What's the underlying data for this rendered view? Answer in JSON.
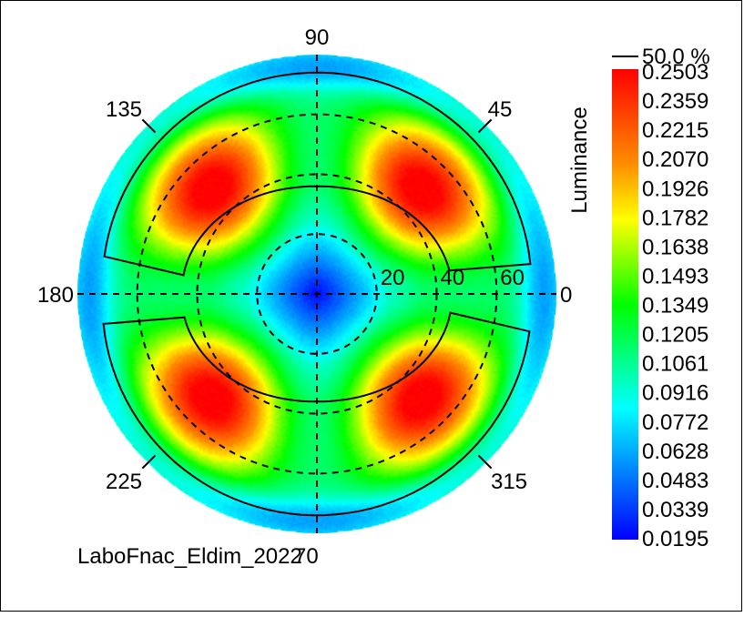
{
  "chart_data": {
    "type": "heatmap",
    "subtype": "polar-conoscope",
    "angle_labels": [
      "0",
      "45",
      "90",
      "135",
      "180",
      "225",
      "270",
      "315"
    ],
    "radial_labels": [
      "20",
      "40",
      "60"
    ],
    "radial_max": 80,
    "colorbar": {
      "label": "Luminance",
      "contour_legend": "50.0 %",
      "min": 0.0195,
      "max": 0.2503,
      "ticks": [
        "0.2503",
        "0.2359",
        "0.2215",
        "0.2070",
        "0.1926",
        "0.1782",
        "0.1638",
        "0.1493",
        "0.1349",
        "0.1205",
        "0.1061",
        "0.0916",
        "0.0772",
        "0.0628",
        "0.0483",
        "0.0339",
        "0.0195"
      ],
      "colors": [
        "#ff0000",
        "#ff8c00",
        "#ffff00",
        "#00ff00",
        "#00ffff",
        "#0000ff"
      ]
    },
    "lobes": [
      {
        "azimuth": 45,
        "peak": 0.2503
      },
      {
        "azimuth": 135,
        "peak": 0.2503
      },
      {
        "azimuth": 225,
        "peak": 0.2503
      },
      {
        "azimuth": 315,
        "peak": 0.2503
      }
    ],
    "center_value": 0.0195
  },
  "footer_text": "LaboFnac_Eldim_2022",
  "footer_overlap": "70"
}
